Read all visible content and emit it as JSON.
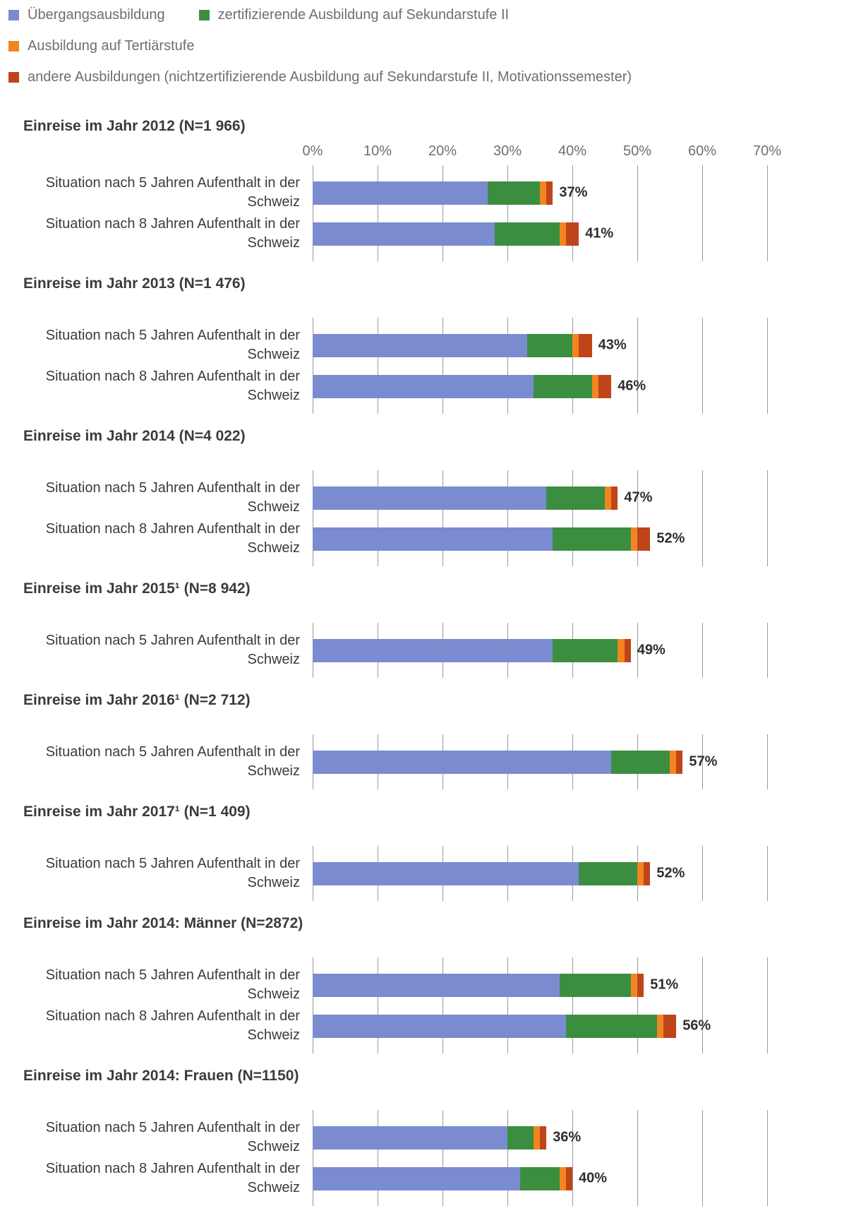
{
  "legend": {
    "items": [
      {
        "label": "Übergangsausbildung",
        "color": "#7A8BD0"
      },
      {
        "label": "zertifizierende Ausbildung auf Sekundarstufe II",
        "color": "#3B8E3F"
      },
      {
        "label": "Ausbildung auf Tertiärstufe",
        "color": "#F28522"
      },
      {
        "label": "andere Ausbildungen (nichtzertifizierende Ausbildung auf Sekundarstufe II, Motivationssemester)",
        "color": "#C0441A"
      }
    ]
  },
  "chart_data": {
    "type": "bar",
    "orientation": "horizontal",
    "stacked": true,
    "unit": "%",
    "series_names": [
      "Übergangsausbildung",
      "zertifizierende Ausbildung auf Sekundarstufe II",
      "Ausbildung auf Tertiärstufe",
      "andere Ausbildungen (nichtzertifizierende Ausbildung auf Sekundarstufe II, Motivationssemester)"
    ],
    "axis": {
      "min": 0,
      "max": 70,
      "ticks": [
        "0%",
        "10%",
        "20%",
        "30%",
        "40%",
        "50%",
        "60%",
        "70%"
      ],
      "grid": true
    },
    "sections": [
      {
        "title": "Einreise im Jahr 2012 (N=1 966)",
        "show_axis": true,
        "rows": [
          {
            "label": "Situation nach 5 Jahren Aufenthalt in der Schweiz",
            "values": [
              27,
              8,
              1,
              1
            ],
            "total_label": "37%"
          },
          {
            "label": "Situation nach 8 Jahren Aufenthalt in der Schweiz",
            "values": [
              28,
              10,
              1,
              2
            ],
            "total_label": "41%"
          }
        ]
      },
      {
        "title": "Einreise im Jahr 2013 (N=1 476)",
        "show_axis": false,
        "rows": [
          {
            "label": "Situation nach 5 Jahren Aufenthalt in der Schweiz",
            "values": [
              33,
              7,
              1,
              2
            ],
            "total_label": "43%"
          },
          {
            "label": "Situation nach 8 Jahren Aufenthalt in der Schweiz",
            "values": [
              34,
              9,
              1,
              2
            ],
            "total_label": "46%"
          }
        ]
      },
      {
        "title": "Einreise im Jahr 2014 (N=4 022)",
        "show_axis": false,
        "rows": [
          {
            "label": "Situation nach 5 Jahren Aufenthalt in der Schweiz",
            "values": [
              36,
              9,
              1,
              1
            ],
            "total_label": "47%"
          },
          {
            "label": "Situation nach 8 Jahren Aufenthalt in der Schweiz",
            "values": [
              37,
              12,
              1,
              2
            ],
            "total_label": "52%"
          }
        ]
      },
      {
        "title": "Einreise im Jahr 2015¹ (N=8 942)",
        "show_axis": false,
        "rows": [
          {
            "label": "Situation nach 5 Jahren Aufenthalt in der Schweiz",
            "values": [
              37,
              10,
              1,
              1
            ],
            "total_label": "49%"
          }
        ]
      },
      {
        "title": "Einreise im Jahr 2016¹ (N=2 712)",
        "show_axis": false,
        "rows": [
          {
            "label": "Situation nach 5 Jahren Aufenthalt in der Schweiz",
            "values": [
              46,
              9,
              1,
              1
            ],
            "total_label": "57%"
          }
        ]
      },
      {
        "title": "Einreise im Jahr 2017¹ (N=1 409)",
        "show_axis": false,
        "rows": [
          {
            "label": "Situation nach 5 Jahren Aufenthalt in der Schweiz",
            "values": [
              41,
              9,
              1,
              1
            ],
            "total_label": "52%"
          }
        ]
      },
      {
        "title": "Einreise im Jahr 2014: Männer (N=2872)",
        "show_axis": false,
        "rows": [
          {
            "label": "Situation nach 5 Jahren Aufenthalt in der Schweiz",
            "values": [
              38,
              11,
              1,
              1
            ],
            "total_label": "51%"
          },
          {
            "label": "Situation nach 8 Jahren Aufenthalt in der Schweiz",
            "values": [
              39,
              14,
              1,
              2
            ],
            "total_label": "56%"
          }
        ]
      },
      {
        "title": "Einreise im Jahr 2014: Frauen (N=1150)",
        "show_axis": false,
        "rows": [
          {
            "label": "Situation nach 5 Jahren Aufenthalt in der Schweiz",
            "values": [
              30,
              4,
              1,
              1
            ],
            "total_label": "36%"
          },
          {
            "label": "Situation nach 8 Jahren Aufenthalt in der Schweiz",
            "values": [
              32,
              6,
              1,
              1
            ],
            "total_label": "40%"
          }
        ]
      }
    ]
  },
  "colors": {
    "gridline": "#9A9A9A",
    "text_dark": "#3B3B3B",
    "text_gray": "#6F6F6F"
  }
}
